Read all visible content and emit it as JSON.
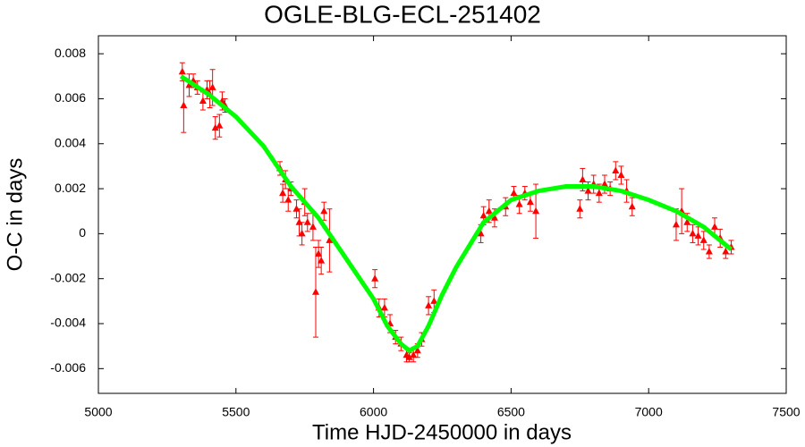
{
  "chart_data": {
    "type": "scatter",
    "title": "OGLE-BLG-ECL-251402",
    "xlabel": "Time HJD-2450000 in days",
    "ylabel": "O-C in days",
    "xlim": [
      5000,
      7500
    ],
    "ylim": [
      -0.0071,
      0.0088
    ],
    "xticks": [
      5000,
      5500,
      6000,
      6500,
      7000,
      7500
    ],
    "yticks": [
      -0.006,
      -0.004,
      -0.002,
      0,
      0.002,
      0.004,
      0.006,
      0.008
    ],
    "series": [
      {
        "color": "#ff0000",
        "x": [
          5305,
          5310,
          5330,
          5345,
          5360,
          5380,
          5395,
          5405,
          5415,
          5425,
          5440,
          5450,
          5460,
          5660,
          5670,
          5680,
          5690,
          5700,
          5720,
          5730,
          5740,
          5750,
          5760,
          5780,
          5790,
          5800,
          5810,
          5820,
          5840,
          6005,
          6020,
          6040,
          6060,
          6080,
          6100,
          6120,
          6130,
          6145,
          6160,
          6175,
          6200,
          6220,
          6390,
          6400,
          6420,
          6440,
          6480,
          6510,
          6530,
          6550,
          6570,
          6590,
          6750,
          6760,
          6780,
          6800,
          6820,
          6840,
          6860,
          6880,
          6900,
          6920,
          6940,
          7100,
          7120,
          7140,
          7160,
          7180,
          7200,
          7220,
          7240,
          7260,
          7280,
          7300
        ],
        "values": [
          0.0072,
          0.0057,
          0.0066,
          0.0068,
          0.0065,
          0.0059,
          0.0064,
          0.0062,
          0.0065,
          0.0047,
          0.0048,
          0.0059,
          0.0057,
          0.0029,
          0.0018,
          0.0024,
          0.0015,
          0.002,
          0.0011,
          0.0005,
          0.0,
          0.0014,
          0.0005,
          0.0003,
          -0.0026,
          -0.0009,
          -0.0012,
          0.001,
          -0.0003,
          -0.002,
          -0.0033,
          -0.0033,
          -0.004,
          -0.0046,
          -0.0049,
          -0.0054,
          -0.0055,
          -0.0054,
          -0.0052,
          -0.0047,
          -0.0032,
          -0.003,
          0.0,
          0.0008,
          0.001,
          0.0007,
          0.0012,
          0.0018,
          0.0013,
          0.0018,
          0.0014,
          0.001,
          0.0011,
          0.0024,
          0.0019,
          0.0022,
          0.0018,
          0.0022,
          0.002,
          0.0028,
          0.0026,
          0.0019,
          0.0012,
          0.0004,
          0.001,
          0.0005,
          0.0,
          -0.0001,
          -0.0003,
          -0.0008,
          0.0003,
          -0.0002,
          -0.0008,
          -0.0006
        ],
        "errors": [
          0.0004,
          0.0012,
          0.0005,
          0.0003,
          0.0003,
          0.0004,
          0.0004,
          0.0006,
          0.0008,
          0.0005,
          0.0005,
          0.0004,
          0.0003,
          0.0003,
          0.0004,
          0.0004,
          0.0005,
          0.0003,
          0.0004,
          0.0006,
          0.0005,
          0.0006,
          0.0004,
          0.0006,
          0.002,
          0.0006,
          0.0006,
          0.0004,
          0.0014,
          0.0004,
          0.0004,
          0.0004,
          0.0004,
          0.0003,
          0.0003,
          0.0003,
          0.0002,
          0.0003,
          0.0003,
          0.0003,
          0.0004,
          0.0005,
          0.0004,
          0.0004,
          0.0005,
          0.0004,
          0.0004,
          0.0003,
          0.0004,
          0.0003,
          0.0004,
          0.0012,
          0.0004,
          0.0005,
          0.0004,
          0.0004,
          0.0004,
          0.0004,
          0.0003,
          0.0004,
          0.0004,
          0.0005,
          0.0004,
          0.0007,
          0.001,
          0.0004,
          0.0004,
          0.0004,
          0.0004,
          0.0003,
          0.0004,
          0.0004,
          0.0003,
          0.0003
        ]
      },
      {
        "color": "#00ff00",
        "line": true,
        "x": [
          5300,
          5400,
          5500,
          5600,
          5700,
          5800,
          5900,
          6000,
          6050,
          6100,
          6130,
          6160,
          6200,
          6250,
          6300,
          6400,
          6500,
          6600,
          6700,
          6800,
          6900,
          7000,
          7100,
          7200,
          7300
        ],
        "values": [
          0.007,
          0.0062,
          0.0052,
          0.0039,
          0.0021,
          0.0007,
          -0.0011,
          -0.0029,
          -0.0041,
          -0.0049,
          -0.0052,
          -0.005,
          -0.0041,
          -0.0027,
          -0.0015,
          0.0005,
          0.0015,
          0.0019,
          0.0021,
          0.0021,
          0.0019,
          0.0015,
          0.001,
          0.0003,
          -0.0007
        ]
      }
    ]
  }
}
